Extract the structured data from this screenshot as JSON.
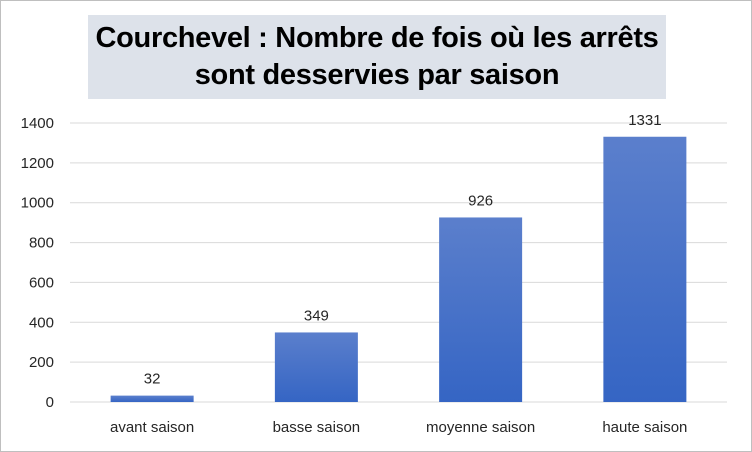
{
  "chart_data": {
    "type": "bar",
    "title": "Courchevel : Nombre de fois où les arrêts sont desservies par saison",
    "categories": [
      "avant saison",
      "basse saison",
      "moyenne saison",
      "haute saison"
    ],
    "values": [
      32,
      349,
      926,
      1331
    ],
    "data_labels": [
      "32",
      "349",
      "926",
      "1331"
    ],
    "yticks": [
      0,
      200,
      400,
      600,
      800,
      1000,
      1200,
      1400
    ],
    "ylim": [
      0,
      1400
    ],
    "xlabel": "",
    "ylabel": "",
    "grid": true,
    "legend": "none",
    "colors": {
      "bar_top": "#5b7fcc",
      "bar_bottom": "#3565c4",
      "grid": "#d9d9d9",
      "title_bg": "#dde2ea"
    }
  }
}
